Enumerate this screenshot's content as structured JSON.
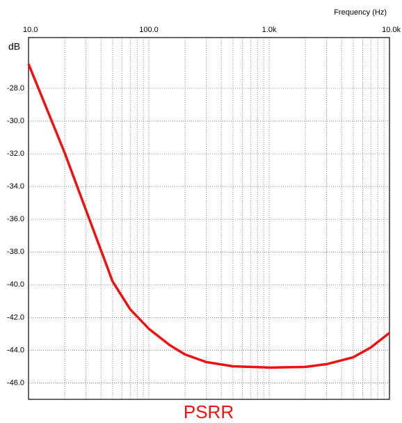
{
  "chart_data": {
    "type": "line",
    "title": "PSRR",
    "x_label": "Frequency   (Hz)",
    "y_label": "dB",
    "x": [
      10,
      20,
      30,
      50,
      70,
      100,
      150,
      200,
      300,
      500,
      1000,
      2000,
      3000,
      5000,
      7000,
      10000
    ],
    "series": [
      {
        "name": "PSRR",
        "color": "#ee1111",
        "values": [
          -26.51,
          -31.95,
          -35.43,
          -39.8,
          -41.5,
          -42.69,
          -43.7,
          -44.26,
          -44.72,
          -44.98,
          -45.06,
          -45.02,
          -44.85,
          -44.43,
          -43.83,
          -42.94
        ]
      }
    ],
    "xlim": [
      10,
      10000
    ],
    "xlog": true,
    "xticks": [
      {
        "value": 10,
        "label": "10.0"
      },
      {
        "value": 100,
        "label": "100.0"
      },
      {
        "value": 1000,
        "label": "1.0k"
      },
      {
        "value": 10000,
        "label": "10.0k"
      }
    ],
    "xminor": [
      20,
      30,
      40,
      50,
      60,
      70,
      80,
      90,
      200,
      300,
      400,
      500,
      600,
      700,
      800,
      900,
      2000,
      3000,
      4000,
      5000,
      6000,
      7000,
      8000,
      9000
    ],
    "ylim": [
      -47,
      -24.9
    ],
    "yticks": [
      {
        "value": -28,
        "label": "-28.0"
      },
      {
        "value": -30,
        "label": "-30.0"
      },
      {
        "value": -32,
        "label": "-32.0"
      },
      {
        "value": -34,
        "label": "-34.0"
      },
      {
        "value": -36,
        "label": "-36.0"
      },
      {
        "value": -38,
        "label": "-38.0"
      },
      {
        "value": -40,
        "label": "-40.0"
      },
      {
        "value": -42,
        "label": "-42.0"
      },
      {
        "value": -44,
        "label": "-44.0"
      },
      {
        "value": -46,
        "label": "-46.0"
      }
    ],
    "grid": true
  }
}
